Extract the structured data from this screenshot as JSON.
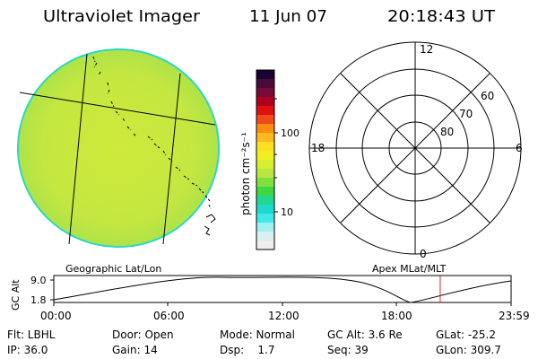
{
  "header": {
    "instrument": "Ultraviolet Imager",
    "date": "11 Jun 07",
    "time": "20:18:43 UT"
  },
  "colorbar": {
    "unit_label": "photon cm⁻²s⁻¹",
    "tick_100": "100",
    "tick_10": "10"
  },
  "polar_plot": {
    "mlt_12": "12",
    "mlt_18": "18",
    "mlt_6": "6",
    "mlt_0": "0",
    "lat_60": "60",
    "lat_70": "70",
    "lat_80": "80"
  },
  "labels": {
    "geographic": "Geographic Lat/Lon",
    "apex": "Apex MLat/MLT"
  },
  "altitude_plot": {
    "ylabel": "GC Alt",
    "y_top": "9.0",
    "y_bottom": "1.8",
    "times": [
      "00:00",
      "06:00",
      "12:00",
      "18:00",
      "23:59"
    ],
    "current_time_fraction": 0.845
  },
  "info": {
    "filter": "Flt: LBHL",
    "ip": "IP: 36.0",
    "door": "Door: Open",
    "gain": "Gain: 14",
    "mode": "Mode: Normal",
    "dsp": "Dsp:    1.7",
    "gc_alt": "GC Alt: 3.6 Re",
    "seq": "Seq: 39",
    "glat": "GLat: -25.2",
    "glon": "GLon: 309.7"
  },
  "colors": {
    "disk": "#c6e83a",
    "disk_edge": "#20d6c8",
    "current_time_marker": "#e0202a"
  }
}
